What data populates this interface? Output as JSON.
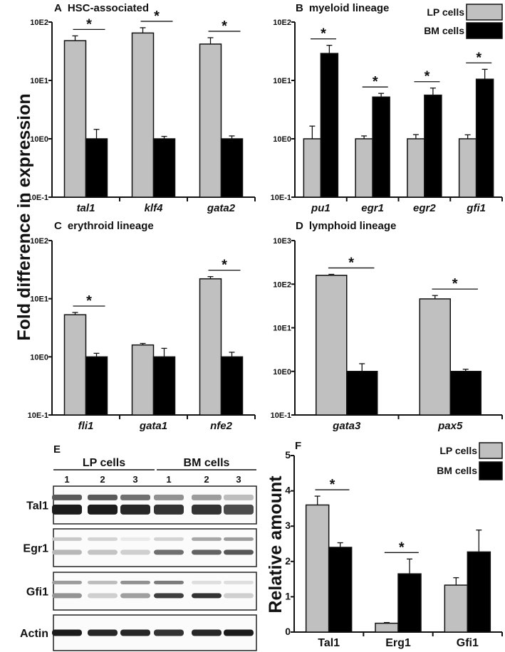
{
  "figure": {
    "shared_ylabel": "Fold difference in expression",
    "legend": {
      "items": [
        {
          "label": "LP cells",
          "color": "#c0c0c0"
        },
        {
          "label": "BM cells",
          "color": "#000000"
        }
      ]
    },
    "colors": {
      "lp": "#c0c0c0",
      "bm": "#000000",
      "axis": "#111111"
    }
  },
  "chart_data": [
    {
      "id": "A",
      "type": "bar",
      "panel_letter": "A",
      "title": "HSC-associated",
      "yscale": "log",
      "ylim": [
        0.1,
        100
      ],
      "ytick_labels": [
        "10E-1",
        "10E0",
        "10E1",
        "10E2"
      ],
      "categories": [
        "tal1",
        "klf4",
        "gata2"
      ],
      "series": [
        {
          "name": "LP cells",
          "values": [
            48,
            65,
            42
          ],
          "errors": [
            10,
            15,
            12
          ]
        },
        {
          "name": "BM cells",
          "values": [
            1.0,
            1.0,
            1.0
          ],
          "errors": [
            0.45,
            0.1,
            0.12
          ]
        }
      ],
      "significance": [
        "*",
        "*",
        "*"
      ]
    },
    {
      "id": "B",
      "type": "bar",
      "panel_letter": "B",
      "title": "myeloid lineage",
      "yscale": "log",
      "ylim": [
        0.1,
        100
      ],
      "ytick_labels": [
        "10E-1",
        "10E0",
        "10E1",
        "10E2"
      ],
      "categories": [
        "pu1",
        "egr1",
        "egr2",
        "gfi1"
      ],
      "series": [
        {
          "name": "LP cells",
          "values": [
            1.0,
            1.0,
            1.0,
            1.0
          ],
          "errors": [
            0.65,
            0.12,
            0.18,
            0.17
          ]
        },
        {
          "name": "BM cells",
          "values": [
            29,
            5.2,
            5.6,
            10.5
          ],
          "errors": [
            11,
            0.8,
            1.8,
            5
          ]
        }
      ],
      "significance": [
        "*",
        "*",
        "*",
        "*"
      ],
      "legend": "top-right"
    },
    {
      "id": "C",
      "type": "bar",
      "panel_letter": "C",
      "title": "erythroid lineage",
      "yscale": "log",
      "ylim": [
        0.1,
        100
      ],
      "ytick_labels": [
        "10E-1",
        "10E0",
        "10E1",
        "10E2"
      ],
      "categories": [
        "fli1",
        "gata1",
        "nfe2"
      ],
      "series": [
        {
          "name": "LP cells",
          "values": [
            5.3,
            1.6,
            22
          ],
          "errors": [
            0.5,
            0.1,
            2
          ]
        },
        {
          "name": "BM cells",
          "values": [
            1.0,
            1.0,
            1.0
          ],
          "errors": [
            0.15,
            0.4,
            0.2
          ]
        }
      ],
      "significance": [
        "*",
        "",
        "*"
      ]
    },
    {
      "id": "D",
      "type": "bar",
      "panel_letter": "D",
      "title": "lymphoid lineage",
      "yscale": "log",
      "ylim": [
        0.1,
        1000
      ],
      "ytick_labels": [
        "10E-1",
        "10E0",
        "10E1",
        "10E2",
        "10E3"
      ],
      "categories": [
        "gata3",
        "pax5"
      ],
      "series": [
        {
          "name": "LP cells",
          "values": [
            160,
            46
          ],
          "errors": [
            8,
            9
          ]
        },
        {
          "name": "BM cells",
          "values": [
            1.0,
            1.0
          ],
          "errors": [
            0.5,
            0.12
          ]
        }
      ],
      "significance": [
        "*",
        "*"
      ]
    },
    {
      "id": "F",
      "type": "bar",
      "panel_letter": "F",
      "title": "",
      "ylabel": "Relative amount",
      "yscale": "linear",
      "ylim": [
        0,
        5
      ],
      "yticks": [
        0,
        1,
        2,
        3,
        4,
        5
      ],
      "categories": [
        "Tal1",
        "Erg1",
        "Gfi1"
      ],
      "series": [
        {
          "name": "LP cells",
          "values": [
            3.6,
            0.25,
            1.33
          ],
          "errors": [
            0.25,
            0.02,
            0.21
          ]
        },
        {
          "name": "BM cells",
          "values": [
            2.4,
            1.65,
            2.27
          ],
          "errors": [
            0.13,
            0.42,
            0.62
          ]
        }
      ],
      "significance": [
        "*",
        "*",
        ""
      ],
      "legend": "top-right"
    }
  ],
  "western_blot": {
    "panel_letter": "E",
    "groups": [
      {
        "label": "LP cells",
        "lanes": [
          "1",
          "2",
          "3"
        ]
      },
      {
        "label": "BM cells",
        "lanes": [
          "1",
          "2",
          "3"
        ]
      }
    ],
    "rows": [
      {
        "label": "Tal1",
        "lane_intensity": [
          0.95,
          0.95,
          0.9,
          0.85,
          0.85,
          0.75
        ],
        "upper_band": [
          0.75,
          0.75,
          0.65,
          0.5,
          0.45,
          0.3
        ]
      },
      {
        "label": "Egr1",
        "lane_intensity": [
          0.3,
          0.25,
          0.2,
          0.6,
          0.65,
          0.7
        ],
        "upper_band": [
          0.25,
          0.2,
          0.1,
          0.2,
          0.4,
          0.45
        ]
      },
      {
        "label": "Gfi1",
        "lane_intensity": [
          0.45,
          0.2,
          0.4,
          0.8,
          0.85,
          0.2
        ],
        "upper_band": [
          0.45,
          0.3,
          0.5,
          0.6,
          0.15,
          0.15
        ]
      },
      {
        "label": "Actin",
        "lane_intensity": [
          0.95,
          0.9,
          0.9,
          0.85,
          0.9,
          0.95
        ],
        "upper_band": [
          0,
          0,
          0,
          0,
          0,
          0
        ]
      }
    ]
  }
}
